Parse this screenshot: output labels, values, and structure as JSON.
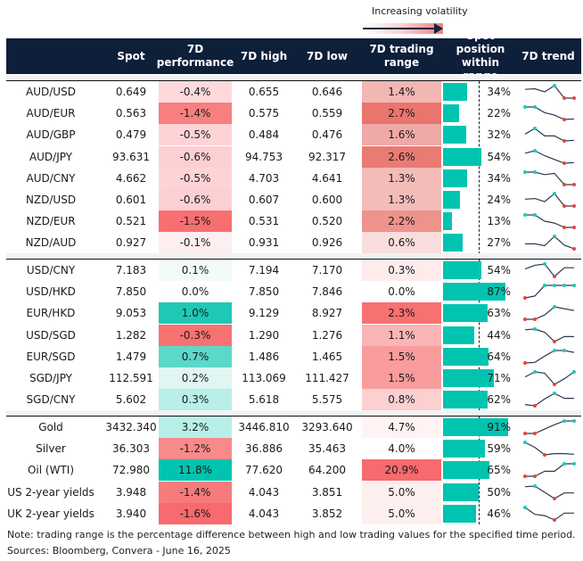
{
  "legend": {
    "label": "Increasing volatility"
  },
  "header": {
    "spot": "Spot",
    "perf": "7D performance",
    "high": "7D high",
    "low": "7D low",
    "range": "7D trading range",
    "position": "Spot position within range",
    "trend": "7D trend"
  },
  "colors": {
    "header_bg": "#0e1f3a",
    "bar": "#00c4b0",
    "spark_line": "#2b3a4f",
    "spark_high": "#1ec9b7",
    "spark_low": "#e8433a"
  },
  "groups": [
    [
      {
        "name": "AUD/USD",
        "spot": "0.649",
        "perf": "-0.4%",
        "perf_color": "#fdd9dc",
        "high": "0.655",
        "low": "0.646",
        "range": "1.4%",
        "range_color": "#f2b6b3",
        "position": 34,
        "position_label": "34%",
        "trend": [
          0.7,
          0.75,
          0.5,
          1,
          0,
          0
        ]
      },
      {
        "name": "AUD/EUR",
        "spot": "0.563",
        "perf": "-1.4%",
        "perf_color": "#f87f7f",
        "high": "0.575",
        "low": "0.559",
        "range": "2.7%",
        "range_color": "#e9756d",
        "position": 22,
        "position_label": "22%",
        "trend": [
          1,
          1,
          0.55,
          0.35,
          0,
          0.05
        ]
      },
      {
        "name": "AUD/GBP",
        "spot": "0.479",
        "perf": "-0.5%",
        "perf_color": "#fdd3d6",
        "high": "0.484",
        "low": "0.476",
        "range": "1.6%",
        "range_color": "#efaaa7",
        "position": 32,
        "position_label": "32%",
        "trend": [
          0.55,
          1,
          0.4,
          0.4,
          0,
          0.05
        ]
      },
      {
        "name": "AUD/JPY",
        "spot": "93.631",
        "perf": "-0.6%",
        "perf_color": "#fcd0d3",
        "high": "94.753",
        "low": "92.317",
        "range": "2.6%",
        "range_color": "#ea7b73",
        "position": 54,
        "position_label": "54%",
        "trend": [
          0.8,
          1,
          0.6,
          0.3,
          0,
          0.05
        ]
      },
      {
        "name": "AUD/CNY",
        "spot": "4.662",
        "perf": "-0.5%",
        "perf_color": "#fdd3d6",
        "high": "4.703",
        "low": "4.641",
        "range": "1.3%",
        "range_color": "#f3bcb9",
        "position": 34,
        "position_label": "34%",
        "trend": [
          1,
          1,
          0.8,
          0.9,
          0,
          0
        ]
      },
      {
        "name": "NZD/USD",
        "spot": "0.601",
        "perf": "-0.6%",
        "perf_color": "#fcd0d3",
        "high": "0.607",
        "low": "0.600",
        "range": "1.3%",
        "range_color": "#f3bcb9",
        "position": 24,
        "position_label": "24%",
        "trend": [
          0.55,
          0.6,
          0.35,
          1,
          0,
          0
        ]
      },
      {
        "name": "NZD/EUR",
        "spot": "0.521",
        "perf": "-1.5%",
        "perf_color": "#f86f72",
        "high": "0.531",
        "low": "0.520",
        "range": "2.2%",
        "range_color": "#ed938c",
        "position": 13,
        "position_label": "13%",
        "trend": [
          1,
          1,
          0.5,
          0.35,
          0,
          0
        ]
      },
      {
        "name": "NZD/AUD",
        "spot": "0.927",
        "perf": "-0.1%",
        "perf_color": "#fdeef0",
        "high": "0.931",
        "low": "0.926",
        "range": "0.6%",
        "range_color": "#f9dedd",
        "position": 27,
        "position_label": "27%",
        "trend": [
          0.4,
          0.4,
          0.25,
          1,
          0.3,
          0
        ]
      }
    ],
    [
      {
        "name": "USD/CNY",
        "spot": "7.183",
        "perf": "0.1%",
        "perf_color": "#f2fbfa",
        "high": "7.194",
        "low": "7.170",
        "range": "0.3%",
        "range_color": "#feeced",
        "position": 54,
        "position_label": "54%",
        "trend": [
          0.6,
          0.9,
          1,
          0,
          0.7,
          0.7
        ]
      },
      {
        "name": "USD/HKD",
        "spot": "7.850",
        "perf": "0.0%",
        "perf_color": "#ffffff",
        "high": "7.850",
        "low": "7.846",
        "range": "0.0%",
        "range_color": "#ffffff",
        "position": 87,
        "position_label": "87%",
        "trend": [
          0,
          0.15,
          1,
          1,
          1,
          1
        ]
      },
      {
        "name": "EUR/HKD",
        "spot": "9.053",
        "perf": "1.0%",
        "perf_color": "#1dc9b4",
        "high": "9.129",
        "low": "8.927",
        "range": "2.3%",
        "range_color": "#f87171",
        "position": 63,
        "position_label": "63%",
        "trend": [
          0,
          0,
          0.35,
          1,
          0.85,
          0.7
        ]
      },
      {
        "name": "USD/SGD",
        "spot": "1.282",
        "perf": "-0.3%",
        "perf_color": "#f87171",
        "high": "1.290",
        "low": "1.276",
        "range": "1.1%",
        "range_color": "#fbb5b6",
        "position": 44,
        "position_label": "44%",
        "trend": [
          0.95,
          1,
          0.75,
          0,
          0.4,
          0.4
        ]
      },
      {
        "name": "EUR/SGD",
        "spot": "1.479",
        "perf": "0.7%",
        "perf_color": "#5cd8c9",
        "high": "1.486",
        "low": "1.465",
        "range": "1.5%",
        "range_color": "#f99c9d",
        "position": 64,
        "position_label": "64%",
        "trend": [
          0,
          0.05,
          0.55,
          1,
          1,
          0.85
        ]
      },
      {
        "name": "SGD/JPY",
        "spot": "112.591",
        "perf": "0.2%",
        "perf_color": "#e0f6f3",
        "high": "113.069",
        "low": "111.427",
        "range": "1.5%",
        "range_color": "#f99c9d",
        "position": 71,
        "position_label": "71%",
        "trend": [
          0.6,
          1,
          0.9,
          0,
          0.45,
          1
        ]
      },
      {
        "name": "SGD/CNY",
        "spot": "5.602",
        "perf": "0.3%",
        "perf_color": "#b8efe8",
        "high": "5.618",
        "low": "5.575",
        "range": "0.8%",
        "range_color": "#fccfd1",
        "position": 62,
        "position_label": "62%",
        "trend": [
          0.1,
          0,
          0.55,
          1,
          0.6,
          0.6
        ]
      }
    ],
    [
      {
        "name": "Gold",
        "spot": "3432.340",
        "perf": "3.2%",
        "perf_color": "#b8efe9",
        "high": "3446.810",
        "low": "3293.640",
        "range": "4.7%",
        "range_color": "#fff3f3",
        "position": 91,
        "position_label": "91%",
        "trend": [
          0,
          0,
          0.35,
          0.7,
          1,
          1
        ]
      },
      {
        "name": "Silver",
        "spot": "36.303",
        "perf": "-1.2%",
        "perf_color": "#f88a8a",
        "high": "36.886",
        "low": "35.463",
        "range": "4.0%",
        "range_color": "#ffffff",
        "position": 59,
        "position_label": "59%",
        "trend": [
          1,
          0.6,
          0,
          0.1,
          0.1,
          0.05
        ]
      },
      {
        "name": "Oil (WTI)",
        "spot": "72.980",
        "perf": "11.8%",
        "perf_color": "#00c4b0",
        "high": "77.620",
        "low": "64.200",
        "range": "20.9%",
        "range_color": "#f76a6e",
        "position": 65,
        "position_label": "65%",
        "trend": [
          0,
          0,
          0.4,
          0.4,
          1,
          1
        ]
      },
      {
        "name": "US 2-year yields",
        "spot": "3.948",
        "perf": "-1.4%",
        "perf_color": "#f87b7b",
        "high": "4.043",
        "low": "3.851",
        "range": "5.0%",
        "range_color": "#fff0f0",
        "position": 50,
        "position_label": "50%",
        "trend": [
          0.95,
          1,
          0.5,
          0,
          0.45,
          0.45
        ]
      },
      {
        "name": "UK 2-year yields",
        "spot": "3.940",
        "perf": "-1.6%",
        "perf_color": "#f76a6e",
        "high": "4.043",
        "low": "3.852",
        "range": "5.0%",
        "range_color": "#fff0f0",
        "position": 46,
        "position_label": "46%",
        "trend": [
          1,
          0.45,
          0.35,
          0,
          0.55,
          0.55
        ]
      }
    ]
  ],
  "footer": {
    "note": "Note: trading range is the percentage difference between high and low trading values for the specified time period.",
    "sources": "Sources: Bloomberg, Convera - June 16, 2025"
  }
}
